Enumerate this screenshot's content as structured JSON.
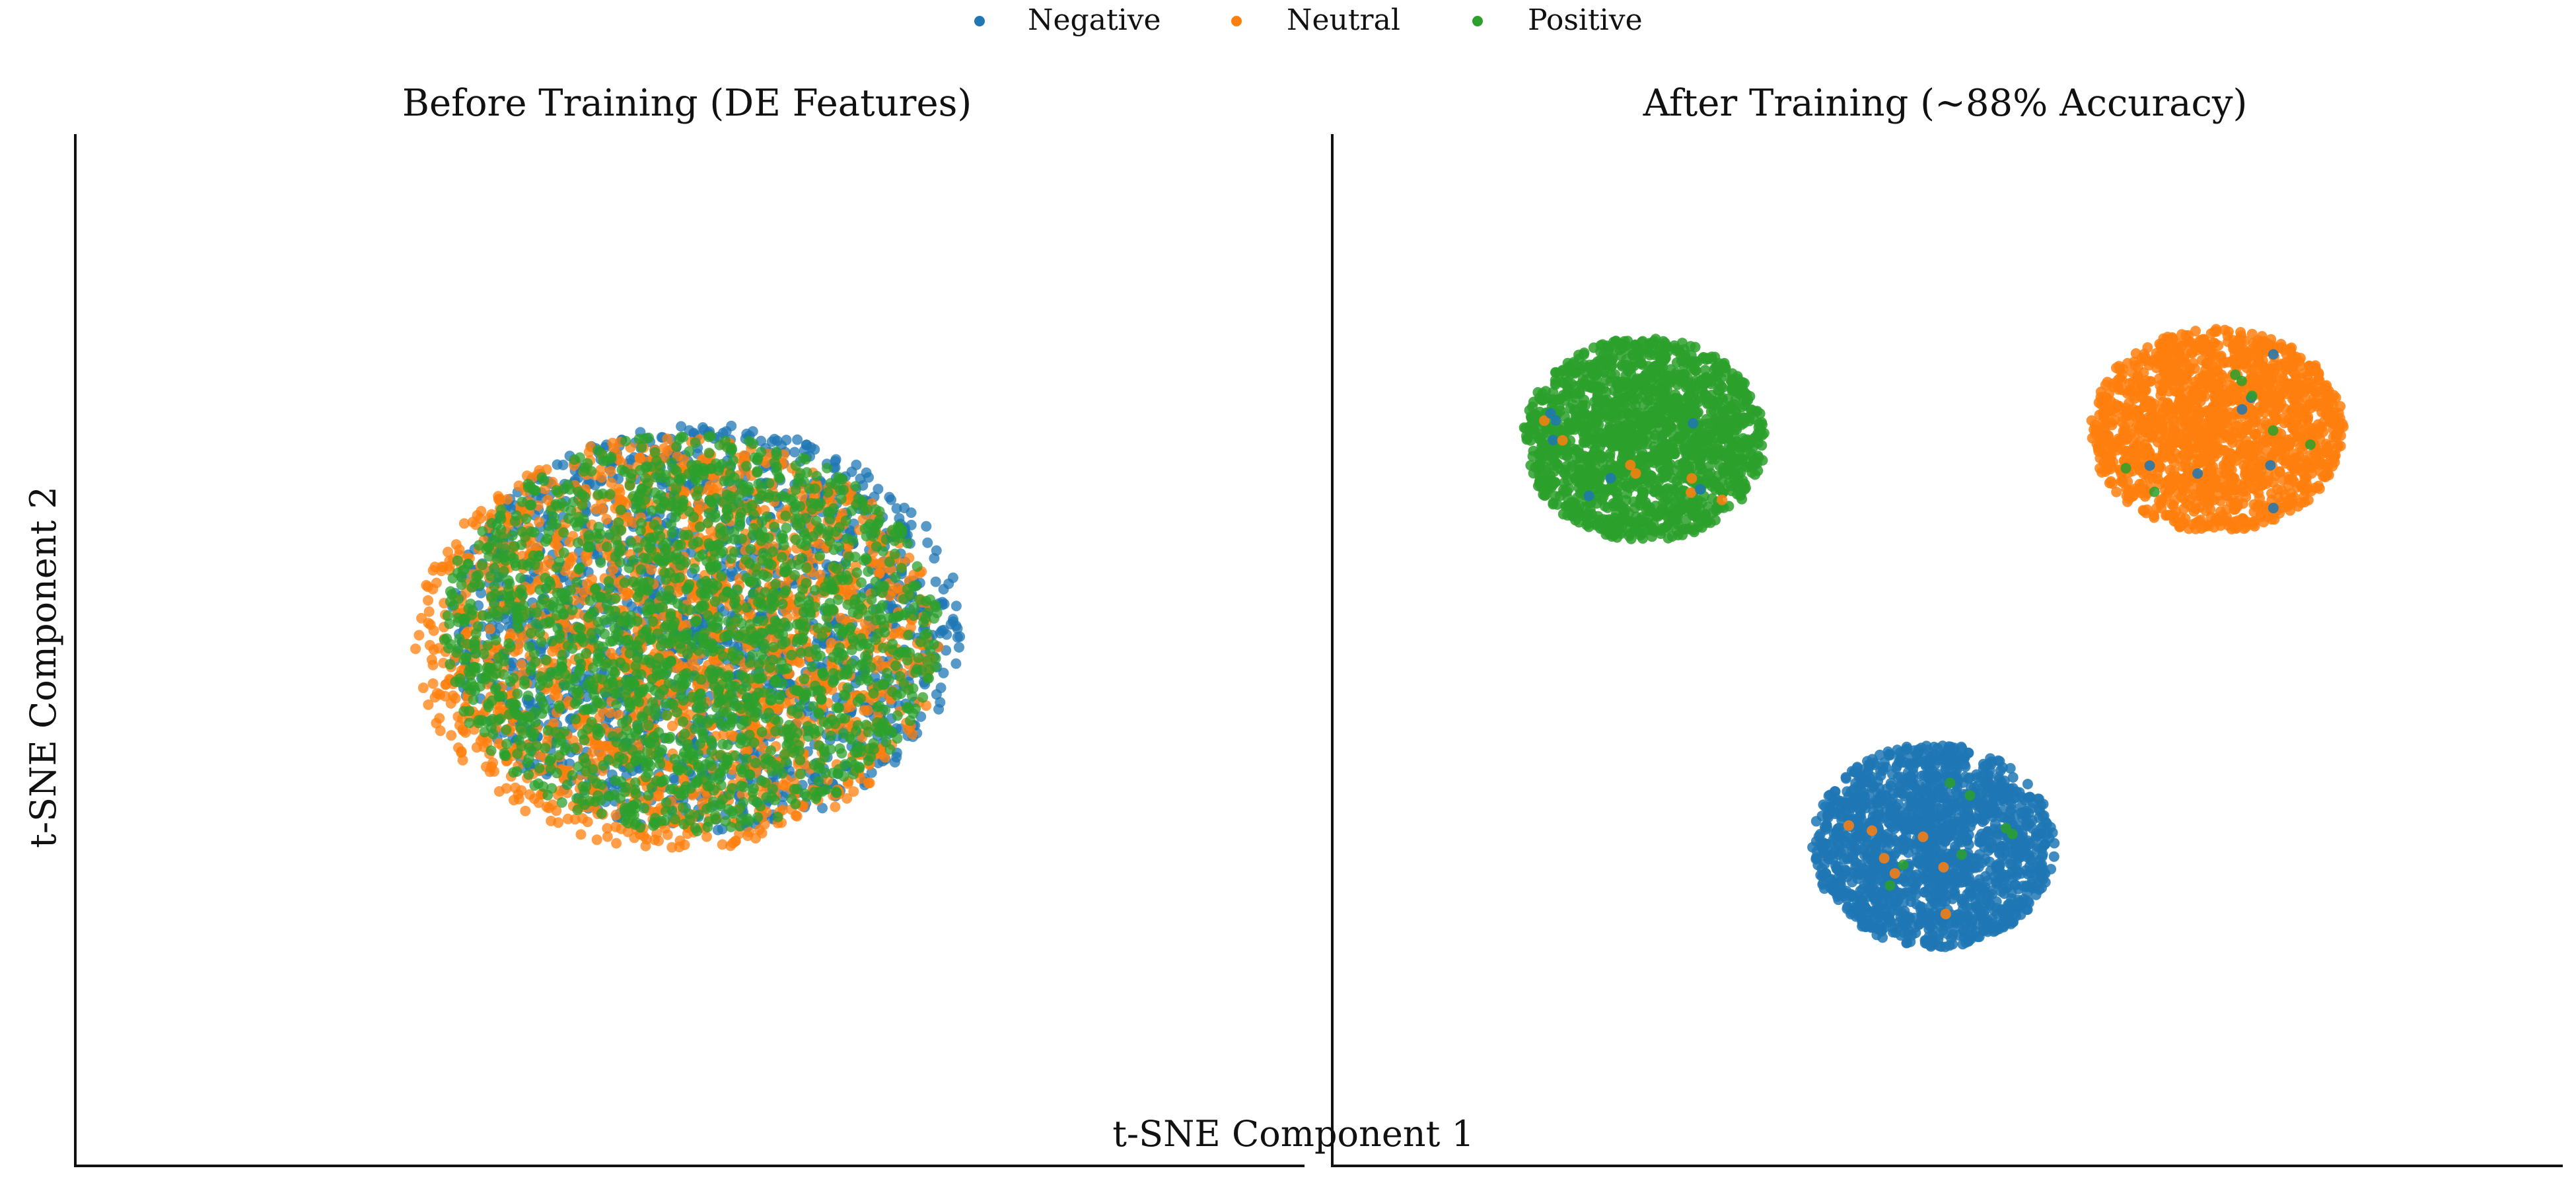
{
  "legend": {
    "items": [
      {
        "label": "Negative",
        "color": "#1f77b4"
      },
      {
        "label": "Neutral",
        "color": "#ff7f0e"
      },
      {
        "label": "Positive",
        "color": "#2ca02c"
      }
    ]
  },
  "xlabel": "t-SNE Component 1",
  "ylabel": "t-SNE Component 2",
  "chart_data": [
    {
      "type": "scatter",
      "title": "Before Training (DE Features)",
      "xlabel": "t-SNE Component 1",
      "ylabel": "t-SNE Component 2",
      "xlim": [
        -100,
        100
      ],
      "ylim": [
        -100,
        100
      ],
      "grid": false,
      "point_alpha": 0.75,
      "series": [
        {
          "name": "Negative",
          "color": "#1f77b4",
          "center": [
            3,
            5
          ],
          "spread": [
            45,
            42
          ],
          "count": 1800
        },
        {
          "name": "Neutral",
          "color": "#ff7f0e",
          "center": [
            -2,
            2
          ],
          "spread": [
            46,
            43
          ],
          "count": 1800
        },
        {
          "name": "Positive",
          "color": "#2ca02c",
          "center": [
            0,
            4
          ],
          "spread": [
            44,
            41
          ],
          "count": 1800
        }
      ]
    },
    {
      "type": "scatter",
      "title": "After Training (~88% Accuracy)",
      "xlabel": "t-SNE Component 1",
      "ylabel": "t-SNE Component 2",
      "xlim": [
        -100,
        100
      ],
      "ylim": [
        -100,
        100
      ],
      "grid": false,
      "accuracy": "~88%",
      "point_alpha": 0.85,
      "series": [
        {
          "name": "Positive",
          "color": "#2ca02c",
          "center": [
            -52,
            44
          ],
          "spread": [
            21,
            21
          ],
          "count": 1600
        },
        {
          "name": "Neutral",
          "color": "#ff7f0e",
          "center": [
            47,
            46
          ],
          "spread": [
            22,
            21
          ],
          "count": 1600
        },
        {
          "name": "Negative",
          "color": "#1f77b4",
          "center": [
            -2,
            -40
          ],
          "spread": [
            21,
            21
          ],
          "count": 1600
        }
      ]
    }
  ]
}
